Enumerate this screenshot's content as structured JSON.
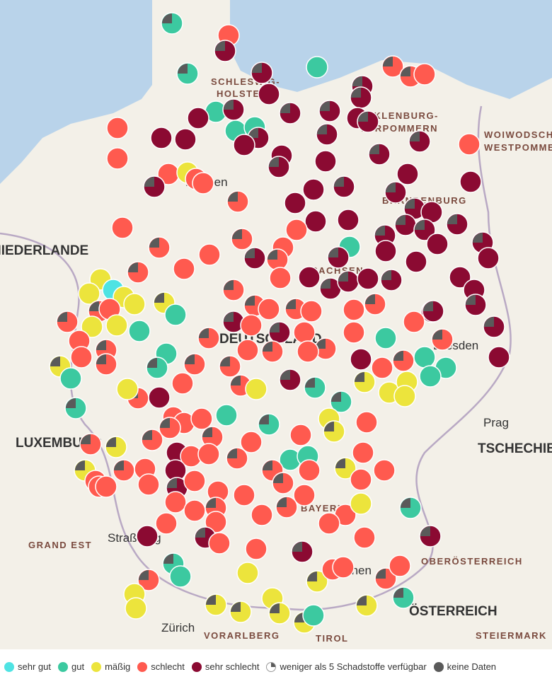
{
  "map": {
    "labels": [
      "SCHLESWIG-",
      "HOLSTEIN",
      "MECKLENBURG-",
      "VORPOMMERN",
      "WOIWODSCHAFT",
      "WESTPOMMERN",
      "BRANDENBURG",
      "NIEDERLANDE",
      "SACHSEN",
      "DEUTSCHLAND",
      "Prag",
      "TSCHECHIEN",
      "LUXEMBURG",
      "GRAND EST",
      "Straßburg",
      "BAYERN",
      "München",
      "OBERÖSTERREICH",
      "ÖSTERREICH",
      "Zürich",
      "VORARLBERG",
      "TIROL",
      "STEIERMARK",
      "Dresden",
      "Bremen"
    ]
  },
  "legend": {
    "items": [
      {
        "label": "sehr gut",
        "color": "#4fe3e3"
      },
      {
        "label": "gut",
        "color": "#3cc9a0"
      },
      {
        "label": "mäßig",
        "color": "#ece43c"
      },
      {
        "label": "schlecht",
        "color": "#ff5a4f"
      },
      {
        "label": "sehr schlecht",
        "color": "#8b0a32"
      },
      {
        "label": "weniger als 5 Schadstoffe verfügbar",
        "color": "#ffffff"
      },
      {
        "label": "keine Daten",
        "color": "#5a5a5a"
      }
    ]
  }
}
